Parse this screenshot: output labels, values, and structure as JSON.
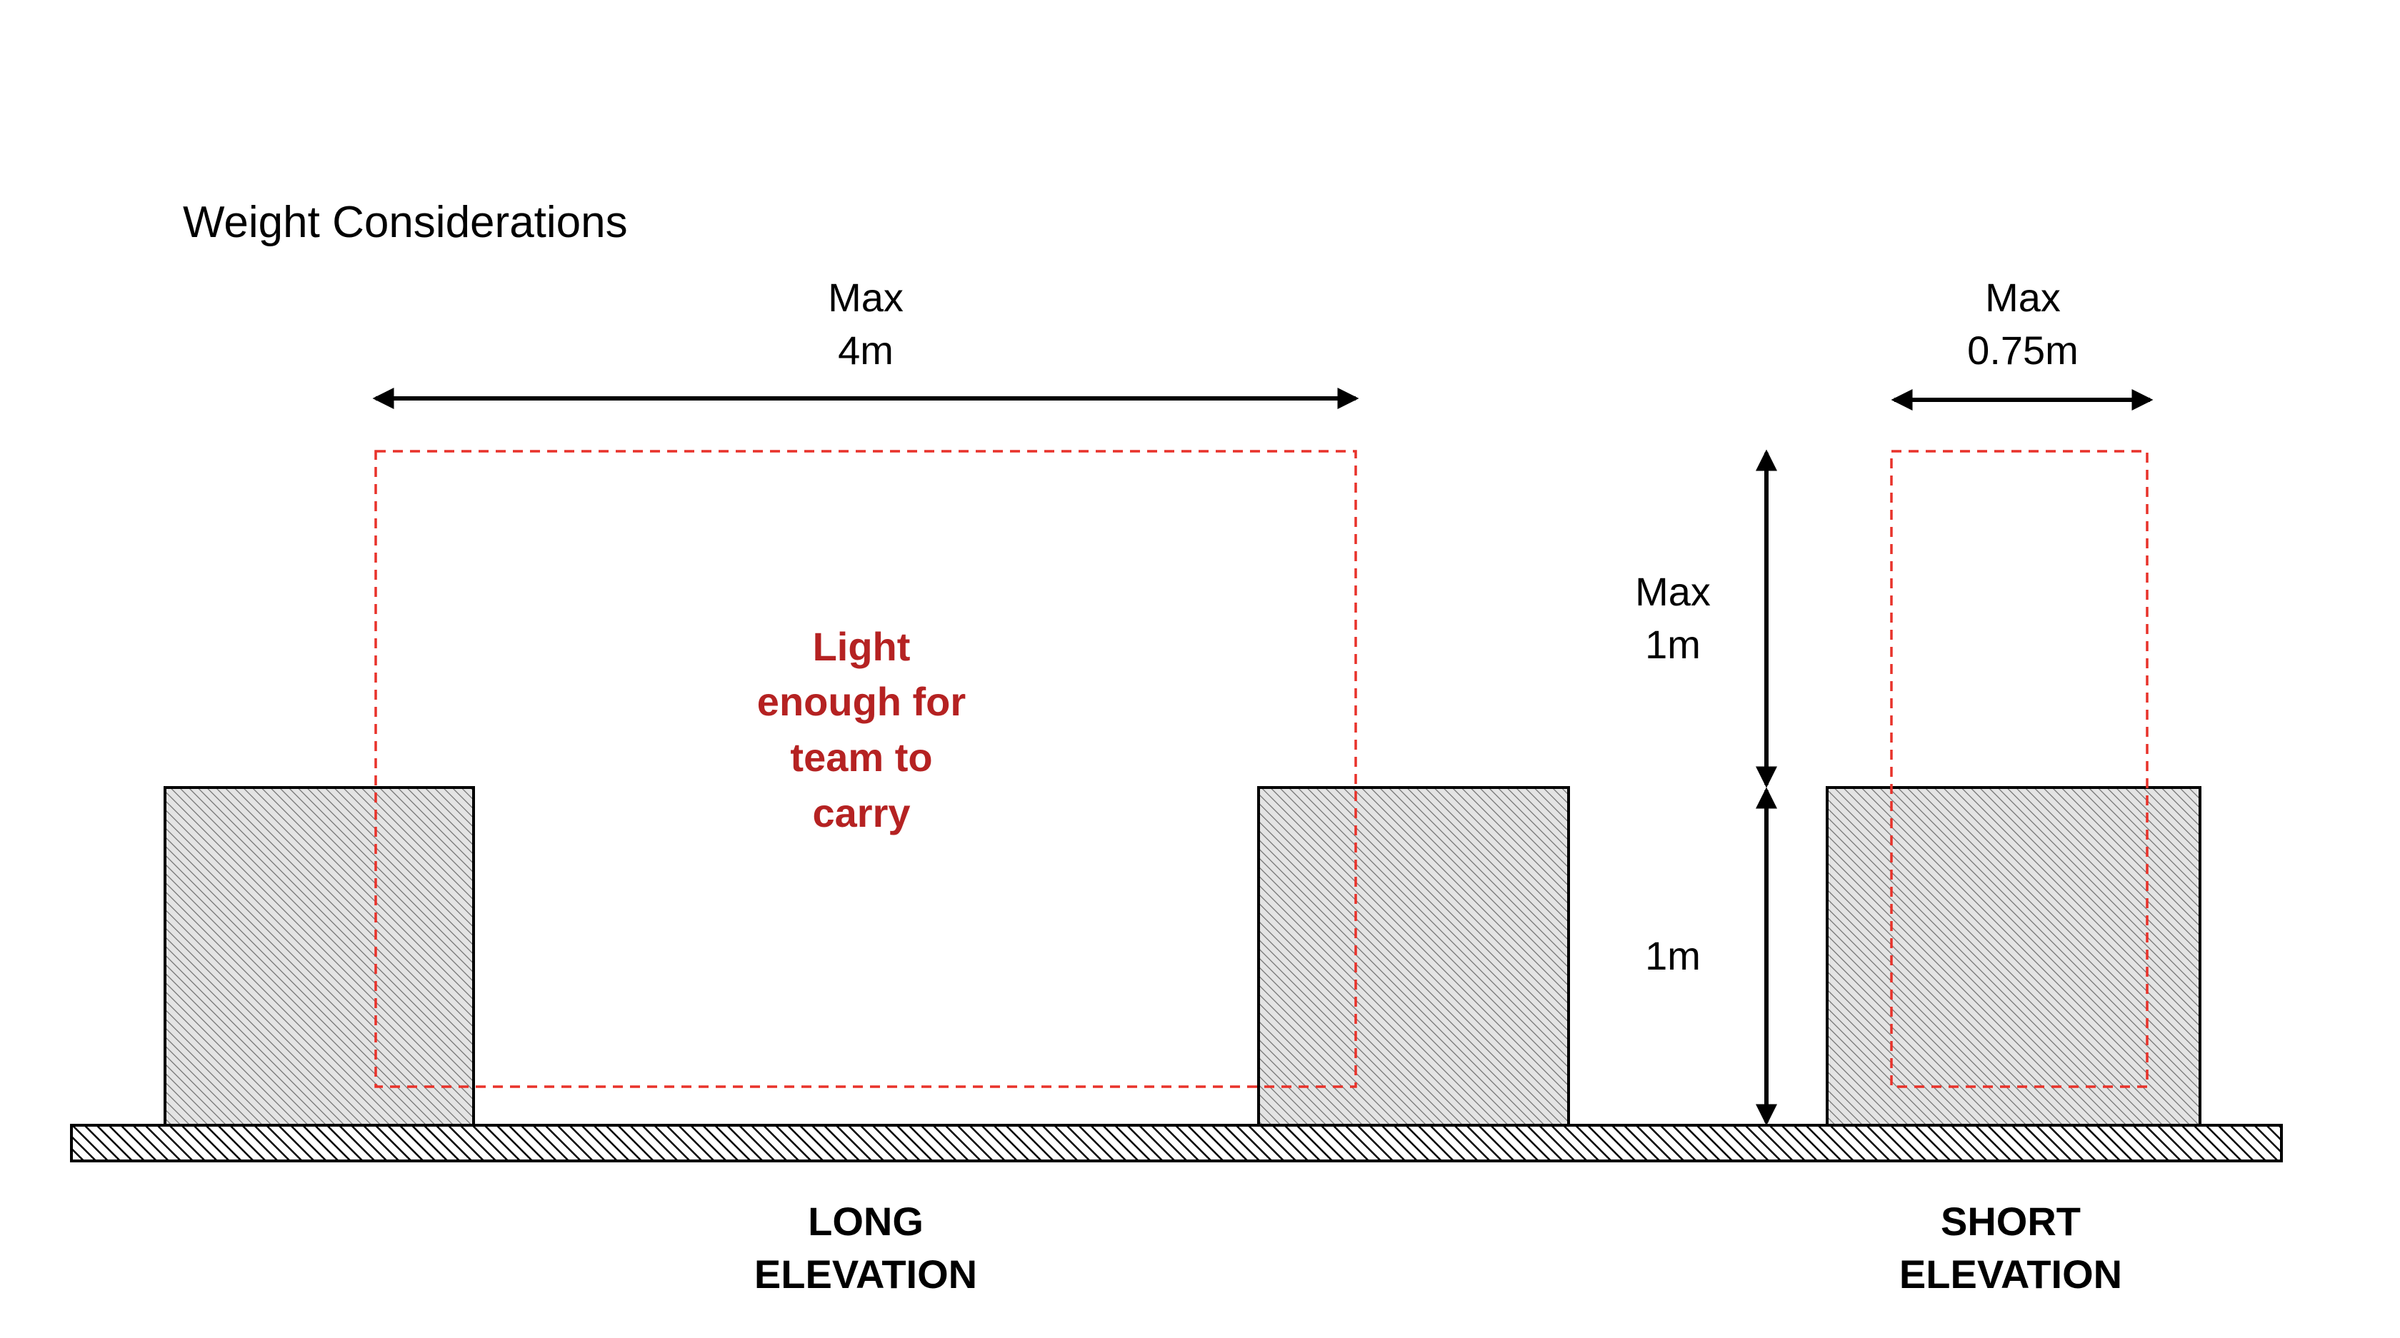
{
  "title": "Weight Considerations",
  "dimensions": {
    "width_label_line1": "Max",
    "width_label_line2": "4m",
    "depth_label_line1": "Max",
    "depth_label_line2": "0.75m",
    "height_label_line1": "Max",
    "height_label_line2": "1m",
    "support_height_label": "1m"
  },
  "callout": {
    "lines": [
      "Light",
      "enough for",
      "team to",
      "carry"
    ]
  },
  "views": {
    "long_line1": "LONG",
    "long_line2": "ELEVATION",
    "short_line1": "SHORT",
    "short_line2": "ELEVATION"
  },
  "colors": {
    "outline": "#000000",
    "envelope": "#e8322a",
    "callout_text": "#b52222",
    "hatch_fill": "#e4e4e4",
    "hatch_line": "#7a7a7a"
  }
}
